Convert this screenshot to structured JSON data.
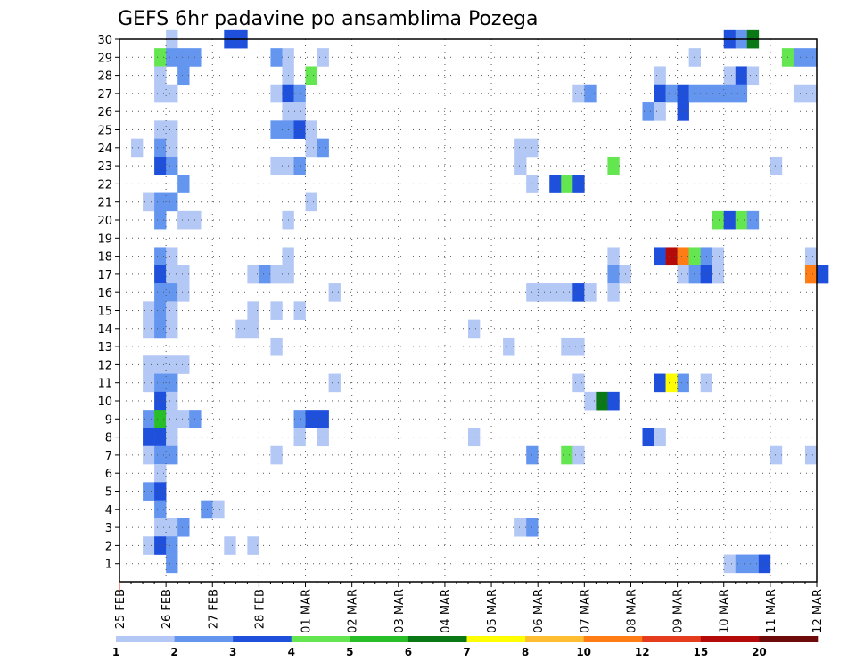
{
  "chart_data": {
    "type": "heatmap",
    "title": "GEFS 6hr padavine po ansamblima Pozega",
    "xlabel": "",
    "ylabel": "",
    "x_start": "2021-02-25 00Z",
    "x_step_hours": 6,
    "x_ticks": [
      "25 FEB",
      "26 FEB",
      "27 FEB",
      "28 FEB",
      "01 MAR",
      "02 MAR",
      "03 MAR",
      "04 MAR",
      "05 MAR",
      "06 MAR",
      "07 MAR",
      "08 MAR",
      "09 MAR",
      "10 MAR",
      "11 MAR",
      "12 MAR"
    ],
    "y_ticks": [
      1,
      2,
      3,
      4,
      5,
      6,
      7,
      8,
      9,
      10,
      11,
      12,
      13,
      14,
      15,
      16,
      17,
      18,
      19,
      20,
      21,
      22,
      23,
      24,
      25,
      26,
      27,
      28,
      29,
      30
    ],
    "grid": true,
    "colorbar": {
      "labels": [
        "1",
        "2",
        "3",
        "4",
        "5",
        "6",
        "7",
        "8",
        "10",
        "12",
        "15",
        "20"
      ],
      "colors": [
        "#b4c8f5",
        "#6496f0",
        "#1e50dc",
        "#64e650",
        "#28be28",
        "#0a7814",
        "#ffff00",
        "#ffbe32",
        "#ff7d14",
        "#e63c1e",
        "#b40a0a",
        "#6e0a0a"
      ]
    },
    "cells": [
      [
        4,
        30,
        1
      ],
      [
        9,
        30,
        3
      ],
      [
        10,
        30,
        3
      ],
      [
        52,
        30,
        3
      ],
      [
        53,
        30,
        2
      ],
      [
        54,
        30,
        6
      ],
      [
        3,
        29,
        4
      ],
      [
        4,
        29,
        2
      ],
      [
        5,
        29,
        2
      ],
      [
        6,
        29,
        2
      ],
      [
        13,
        29,
        2
      ],
      [
        14,
        29,
        1
      ],
      [
        17,
        29,
        1
      ],
      [
        49,
        29,
        1
      ],
      [
        57,
        29,
        4
      ],
      [
        58,
        29,
        2
      ],
      [
        59,
        29,
        2
      ],
      [
        3,
        28,
        1
      ],
      [
        5,
        28,
        2
      ],
      [
        14,
        28,
        1
      ],
      [
        16,
        28,
        4
      ],
      [
        46,
        28,
        1
      ],
      [
        52,
        28,
        1
      ],
      [
        53,
        28,
        3
      ],
      [
        54,
        28,
        1
      ],
      [
        3,
        27,
        1
      ],
      [
        4,
        27,
        1
      ],
      [
        13,
        27,
        1
      ],
      [
        14,
        27,
        3
      ],
      [
        15,
        27,
        2
      ],
      [
        39,
        27,
        1
      ],
      [
        40,
        27,
        2
      ],
      [
        46,
        27,
        3
      ],
      [
        47,
        27,
        2
      ],
      [
        48,
        27,
        3
      ],
      [
        49,
        27,
        2
      ],
      [
        50,
        27,
        2
      ],
      [
        51,
        27,
        2
      ],
      [
        52,
        27,
        2
      ],
      [
        53,
        27,
        2
      ],
      [
        58,
        27,
        1
      ],
      [
        59,
        27,
        1
      ],
      [
        14,
        26,
        1
      ],
      [
        15,
        26,
        1
      ],
      [
        45,
        26,
        2
      ],
      [
        46,
        26,
        1
      ],
      [
        48,
        26,
        3
      ],
      [
        3,
        25,
        1
      ],
      [
        4,
        25,
        1
      ],
      [
        13,
        25,
        2
      ],
      [
        14,
        25,
        2
      ],
      [
        15,
        25,
        3
      ],
      [
        16,
        25,
        1
      ],
      [
        1,
        24,
        1
      ],
      [
        3,
        24,
        2
      ],
      [
        4,
        24,
        1
      ],
      [
        16,
        24,
        1
      ],
      [
        17,
        24,
        2
      ],
      [
        34,
        24,
        1
      ],
      [
        35,
        24,
        1
      ],
      [
        3,
        23,
        3
      ],
      [
        4,
        23,
        2
      ],
      [
        13,
        23,
        1
      ],
      [
        14,
        23,
        1
      ],
      [
        15,
        23,
        2
      ],
      [
        34,
        23,
        1
      ],
      [
        42,
        23,
        4
      ],
      [
        56,
        23,
        1
      ],
      [
        5,
        22,
        2
      ],
      [
        35,
        22,
        1
      ],
      [
        37,
        22,
        3
      ],
      [
        38,
        22,
        4
      ],
      [
        39,
        22,
        3
      ],
      [
        2,
        21,
        1
      ],
      [
        3,
        21,
        2
      ],
      [
        4,
        21,
        2
      ],
      [
        16,
        21,
        1
      ],
      [
        3,
        20,
        2
      ],
      [
        5,
        20,
        1
      ],
      [
        6,
        20,
        1
      ],
      [
        14,
        20,
        1
      ],
      [
        51,
        20,
        4
      ],
      [
        52,
        20,
        3
      ],
      [
        53,
        20,
        4
      ],
      [
        54,
        20,
        2
      ],
      [
        3,
        18,
        2
      ],
      [
        4,
        18,
        1
      ],
      [
        14,
        18,
        1
      ],
      [
        42,
        18,
        1
      ],
      [
        46,
        18,
        3
      ],
      [
        47,
        18,
        11
      ],
      [
        48,
        18,
        9
      ],
      [
        49,
        18,
        4
      ],
      [
        50,
        18,
        2
      ],
      [
        51,
        18,
        1
      ],
      [
        59,
        18,
        1
      ],
      [
        3,
        17,
        3
      ],
      [
        4,
        17,
        1
      ],
      [
        5,
        17,
        1
      ],
      [
        11,
        17,
        1
      ],
      [
        12,
        17,
        2
      ],
      [
        13,
        17,
        1
      ],
      [
        14,
        17,
        1
      ],
      [
        42,
        17,
        2
      ],
      [
        43,
        17,
        1
      ],
      [
        48,
        17,
        1
      ],
      [
        49,
        17,
        2
      ],
      [
        50,
        17,
        3
      ],
      [
        51,
        17,
        1
      ],
      [
        59,
        17,
        9
      ],
      [
        60,
        17,
        3
      ],
      [
        3,
        16,
        2
      ],
      [
        4,
        16,
        2
      ],
      [
        5,
        16,
        1
      ],
      [
        18,
        16,
        1
      ],
      [
        35,
        16,
        1
      ],
      [
        36,
        16,
        1
      ],
      [
        37,
        16,
        1
      ],
      [
        38,
        16,
        1
      ],
      [
        39,
        16,
        3
      ],
      [
        40,
        16,
        1
      ],
      [
        42,
        16,
        1
      ],
      [
        2,
        15,
        1
      ],
      [
        3,
        15,
        2
      ],
      [
        4,
        15,
        1
      ],
      [
        11,
        15,
        1
      ],
      [
        13,
        15,
        1
      ],
      [
        15,
        15,
        1
      ],
      [
        2,
        14,
        1
      ],
      [
        3,
        14,
        2
      ],
      [
        4,
        14,
        1
      ],
      [
        10,
        14,
        1
      ],
      [
        11,
        14,
        1
      ],
      [
        30,
        14,
        1
      ],
      [
        13,
        13,
        1
      ],
      [
        33,
        13,
        1
      ],
      [
        38,
        13,
        1
      ],
      [
        39,
        13,
        1
      ],
      [
        2,
        12,
        1
      ],
      [
        3,
        12,
        1
      ],
      [
        4,
        12,
        1
      ],
      [
        5,
        12,
        1
      ],
      [
        2,
        11,
        1
      ],
      [
        3,
        11,
        2
      ],
      [
        4,
        11,
        2
      ],
      [
        18,
        11,
        1
      ],
      [
        39,
        11,
        1
      ],
      [
        46,
        11,
        3
      ],
      [
        47,
        11,
        7
      ],
      [
        48,
        11,
        2
      ],
      [
        50,
        11,
        1
      ],
      [
        3,
        10,
        3
      ],
      [
        4,
        10,
        1
      ],
      [
        40,
        10,
        1
      ],
      [
        41,
        10,
        6
      ],
      [
        42,
        10,
        3
      ],
      [
        2,
        9,
        2
      ],
      [
        3,
        9,
        5
      ],
      [
        4,
        9,
        1
      ],
      [
        5,
        9,
        1
      ],
      [
        6,
        9,
        2
      ],
      [
        15,
        9,
        2
      ],
      [
        16,
        9,
        3
      ],
      [
        17,
        9,
        3
      ],
      [
        2,
        8,
        3
      ],
      [
        3,
        8,
        3
      ],
      [
        4,
        8,
        1
      ],
      [
        15,
        8,
        1
      ],
      [
        17,
        8,
        1
      ],
      [
        30,
        8,
        1
      ],
      [
        45,
        8,
        3
      ],
      [
        46,
        8,
        1
      ],
      [
        2,
        7,
        1
      ],
      [
        3,
        7,
        2
      ],
      [
        4,
        7,
        2
      ],
      [
        13,
        7,
        1
      ],
      [
        35,
        7,
        2
      ],
      [
        38,
        7,
        4
      ],
      [
        39,
        7,
        1
      ],
      [
        56,
        7,
        1
      ],
      [
        59,
        7,
        1
      ],
      [
        3,
        6,
        1
      ],
      [
        2,
        5,
        2
      ],
      [
        3,
        5,
        3
      ],
      [
        3,
        4,
        2
      ],
      [
        7,
        4,
        2
      ],
      [
        8,
        4,
        1
      ],
      [
        3,
        3,
        1
      ],
      [
        4,
        3,
        1
      ],
      [
        5,
        3,
        2
      ],
      [
        34,
        3,
        1
      ],
      [
        35,
        3,
        2
      ],
      [
        2,
        2,
        1
      ],
      [
        3,
        2,
        3
      ],
      [
        4,
        2,
        2
      ],
      [
        9,
        2,
        1
      ],
      [
        11,
        2,
        1
      ],
      [
        4,
        1,
        2
      ],
      [
        52,
        1,
        1
      ],
      [
        53,
        1,
        2
      ],
      [
        54,
        1,
        2
      ],
      [
        55,
        1,
        3
      ]
    ]
  }
}
